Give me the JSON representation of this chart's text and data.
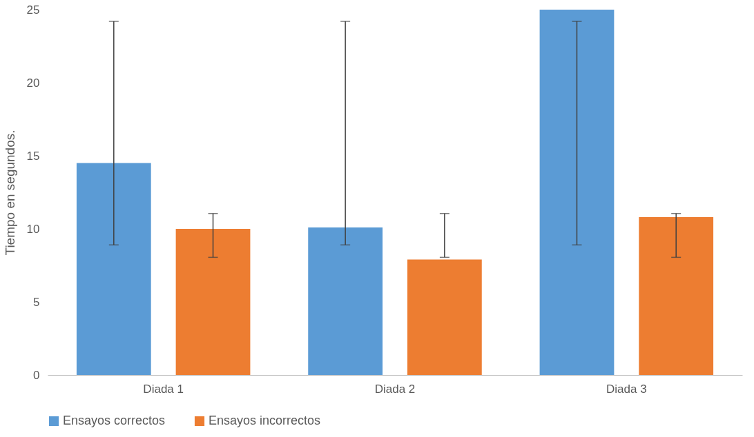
{
  "chart_data": {
    "type": "bar",
    "ylabel": "Tiempo en  segundos.",
    "categories": [
      "Diada 1",
      "Diada 2",
      "Diada 3"
    ],
    "series": [
      {
        "name": "Ensayos correctos",
        "color": "#5b9bd5",
        "values": [
          14.5,
          10.1,
          25
        ],
        "errors": [
          [
            8.9,
            24.2
          ],
          [
            8.9,
            24.2
          ],
          [
            8.9,
            24.2
          ]
        ]
      },
      {
        "name": "Ensayos incorrectos",
        "color": "#ed7d31",
        "values": [
          10,
          7.9,
          10.8
        ],
        "errors": [
          [
            8.05,
            11.05
          ],
          [
            8.05,
            11.05
          ],
          [
            8.05,
            11.05
          ]
        ]
      }
    ],
    "ylim": [
      0,
      25
    ],
    "yticks": [
      0,
      5,
      10,
      15,
      20,
      25
    ],
    "grid": false,
    "legend": "bottom"
  }
}
